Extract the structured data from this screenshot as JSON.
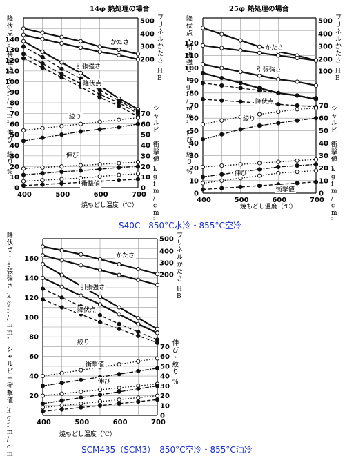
{
  "captions": {
    "top": "S40C　850°C水冷・855°C空冷",
    "bottom": "SCM435（SCM3）　850°C空冷・855°C油冷"
  },
  "colors": {
    "caption": "#1a2fd0",
    "ink": "#111111",
    "grid": "#9a9a9a"
  },
  "chart_data": [
    {
      "type": "line",
      "title": "14φ 熱処理の場合",
      "x": [
        400,
        450,
        500,
        550,
        600,
        650,
        700
      ],
      "xlabel": "焼もどし温度（℃）",
      "xticks": [
        "400",
        "500",
        "600",
        "700"
      ],
      "xlim": [
        400,
        700
      ],
      "ylim_left": [
        0,
        160
      ],
      "left_ticks": [
        "0",
        "10",
        "20",
        "30",
        "40",
        "50",
        "60",
        "70",
        "80",
        "90",
        "100",
        "110",
        "120",
        "130",
        "140"
      ],
      "left_label": [
        "降伏点・引張強さ",
        "kgf/mm²",
        "伸び・絞り",
        "%"
      ],
      "hardness_ticks": [
        "200",
        "300",
        "400",
        "500"
      ],
      "hardness_label": [
        "ブリネルかたさ",
        "HB"
      ],
      "charpy_ticks": [
        "0",
        "10",
        "20",
        "30",
        "40",
        "50",
        "60",
        "70"
      ],
      "charpy_label": [
        "シャルピー衝撃値",
        "kgfm/cm²"
      ],
      "grid": true,
      "series": [
        {
          "name": "かたさ",
          "values": [
            150,
            146,
            142,
            138,
            133,
            130,
            126
          ]
        },
        {
          "name": "",
          "values": [
            144,
            140,
            136,
            132,
            128,
            125,
            121
          ]
        },
        {
          "name": "",
          "values": [
            138,
            128,
            118,
            108,
            96,
            84,
            74
          ]
        },
        {
          "name": "引張強さ",
          "values": [
            133,
            123,
            112,
            103,
            92,
            82,
            72
          ]
        },
        {
          "name": "",
          "values": [
            126,
            117,
            107,
            98,
            88,
            80,
            70
          ]
        },
        {
          "name": "降伏点",
          "values": [
            122,
            113,
            104,
            95,
            85,
            77,
            67
          ]
        },
        {
          "name": "絞り",
          "values": [
            54,
            56,
            58,
            60,
            62,
            64,
            66
          ]
        },
        {
          "name": "",
          "values": [
            44,
            47,
            50,
            53,
            55,
            57,
            60
          ]
        },
        {
          "name": "伸び",
          "values": [
            18,
            19,
            20,
            21,
            22,
            23,
            24
          ]
        },
        {
          "name": "",
          "values": [
            12,
            13.5,
            15,
            16,
            17.5,
            19,
            20
          ]
        },
        {
          "name": "",
          "values": [
            6,
            7,
            8,
            9,
            10.5,
            12,
            13
          ]
        },
        {
          "name": "衝撃値",
          "values": [
            2,
            3,
            4,
            5,
            6,
            7,
            8
          ]
        }
      ],
      "annotations": [
        "かたさ",
        "引張強さ",
        "降伏点",
        "絞り",
        "伸び",
        "衝撃値"
      ]
    },
    {
      "type": "line",
      "title": "25φ 熱処理の場合",
      "x": [
        400,
        450,
        500,
        550,
        600,
        650,
        700
      ],
      "xlabel": "焼もどし温度（℃）",
      "xticks": [
        "400",
        "500",
        "600",
        "700"
      ],
      "xlim": [
        400,
        700
      ],
      "ylim_left": [
        0,
        140
      ],
      "left_ticks": [
        "0",
        "10",
        "20",
        "30",
        "40",
        "50",
        "60",
        "70",
        "80",
        "90",
        "100",
        "110",
        "120"
      ],
      "left_label": [
        "降伏点・引張強さ",
        "kgf/mm²",
        "伸び・絞り",
        "%"
      ],
      "hardness_ticks": [
        "100",
        "200",
        "300",
        "400",
        "500"
      ],
      "hardness_label": [
        "ブリネルかたさ",
        "HB"
      ],
      "charpy_ticks": [
        "0",
        "10",
        "20",
        "30",
        "40",
        "50",
        "60",
        "70"
      ],
      "charpy_label": [
        "シャルピー衝撃値",
        "kgfm/cm²"
      ],
      "grid": true,
      "series": [
        {
          "name": "かたさ",
          "values": [
            132,
            127,
            122,
            117,
            113,
            110,
            106
          ]
        },
        {
          "name": "",
          "values": [
            118,
            116,
            114,
            112,
            110,
            108,
            106
          ]
        },
        {
          "name": "引張強さ",
          "values": [
            103,
            100,
            97,
            94,
            91,
            89,
            86
          ]
        },
        {
          "name": "",
          "values": [
            96,
            92,
            88,
            84,
            80,
            78,
            75
          ]
        },
        {
          "name": "",
          "values": [
            88,
            86,
            84,
            82,
            80,
            78,
            76
          ]
        },
        {
          "name": "降伏点",
          "values": [
            75,
            74,
            73,
            72,
            71,
            70,
            69
          ]
        },
        {
          "name": "絞り",
          "values": [
            55,
            58,
            61,
            63,
            65,
            67,
            68
          ]
        },
        {
          "name": "",
          "values": [
            43,
            47,
            51,
            54,
            56,
            58,
            60
          ]
        },
        {
          "name": "伸び",
          "values": [
            21,
            22,
            23,
            24,
            25,
            26,
            27
          ]
        },
        {
          "name": "",
          "values": [
            13,
            15,
            17,
            19,
            21,
            22,
            23
          ]
        },
        {
          "name": "",
          "values": [
            8,
            10,
            12,
            14,
            16,
            17,
            18
          ]
        },
        {
          "name": "衝撃値",
          "values": [
            3,
            4,
            5,
            6,
            7,
            8,
            9
          ]
        }
      ],
      "annotations": [
        "かたさ",
        "引張強さ",
        "降伏点",
        "絞り",
        "伸び",
        "衝撃値"
      ]
    },
    {
      "type": "line",
      "title": "",
      "x": [
        400,
        450,
        500,
        550,
        600,
        650,
        700
      ],
      "xlabel": "焼もどし温度（℃）",
      "xticks": [
        "400",
        "500",
        "600",
        "700"
      ],
      "xlim": [
        400,
        700
      ],
      "ylim_left": [
        0,
        180
      ],
      "left_ticks": [
        "0",
        "10",
        "20",
        "30",
        "40",
        "50",
        "60",
        "70",
        "80",
        "90",
        "100",
        "110",
        "120",
        "130",
        "140",
        "150",
        "160"
      ],
      "left_ticks_shown": [
        "20",
        "40",
        "60",
        "80",
        "100",
        "120",
        "140",
        "160"
      ],
      "left_label": [
        "降伏点・引張強さ",
        "kgf/mm²",
        "シャルピー衝撃値",
        "kgfm/cm²"
      ],
      "hardness_ticks": [
        "200",
        "300",
        "400",
        "500"
      ],
      "hardness_label": [
        "ブリネルかたさ",
        "HB"
      ],
      "right2_ticks": [
        "0",
        "10",
        "20",
        "30",
        "40",
        "50",
        "60",
        "70"
      ],
      "right2_label": [
        "伸び・絞り",
        "%"
      ],
      "grid": true,
      "series": [
        {
          "name": "かたさ",
          "values": [
            172,
            168,
            164,
            159,
            154,
            149,
            144
          ]
        },
        {
          "name": "",
          "values": [
            163,
            158,
            153,
            148,
            143,
            138,
            133
          ]
        },
        {
          "name": "",
          "values": [
            154,
            143,
            132,
            121,
            110,
            99,
            88
          ]
        },
        {
          "name": "引張強さ",
          "values": [
            140,
            131,
            122,
            113,
            103,
            93,
            84
          ]
        },
        {
          "name": "",
          "values": [
            129,
            120,
            111,
            102,
            93,
            85,
            77
          ]
        },
        {
          "name": "降伏点",
          "values": [
            118,
            110,
            103,
            95,
            88,
            81,
            74
          ]
        },
        {
          "name": "絞り",
          "values": [
            40,
            43,
            46,
            49,
            52,
            55,
            58
          ]
        },
        {
          "name": "",
          "values": [
            30,
            33,
            36,
            39,
            42,
            45,
            48
          ]
        },
        {
          "name": "衝撃値",
          "values": [
            20,
            22,
            24,
            26,
            28,
            30,
            32
          ]
        },
        {
          "name": "",
          "values": [
            12,
            15,
            18,
            21,
            24,
            27,
            30
          ]
        },
        {
          "name": "伸び",
          "values": [
            8,
            10,
            12,
            14,
            16,
            18,
            20
          ]
        },
        {
          "name": "",
          "values": [
            4,
            6,
            8,
            10,
            12,
            14,
            16
          ]
        }
      ],
      "annotations": [
        "かたさ",
        "引張強さ",
        "降伏点",
        "絞り",
        "衝撃値",
        "伸び"
      ]
    }
  ]
}
